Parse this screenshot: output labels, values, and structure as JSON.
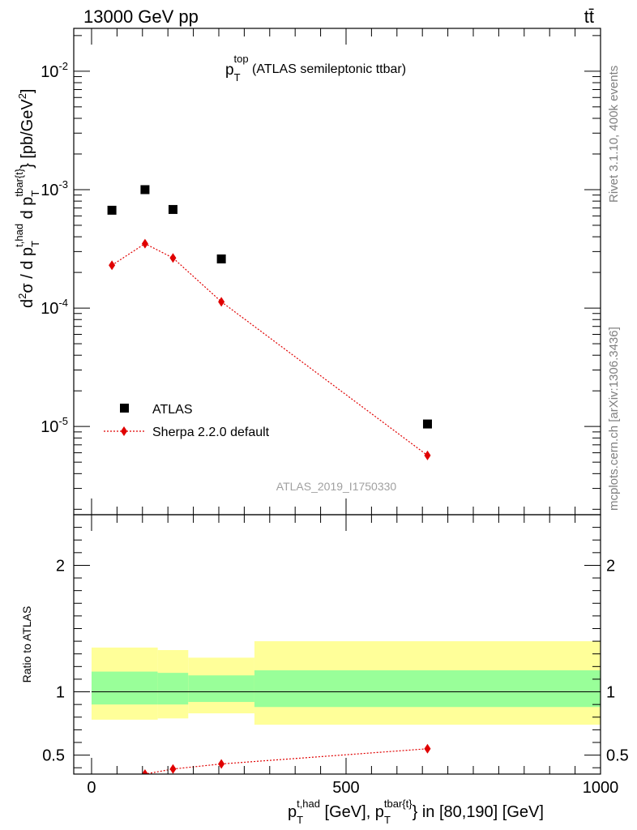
{
  "header": {
    "left": "13000 GeV pp",
    "right": "tt̄"
  },
  "side_labels": {
    "rivet": "Rivet 3.1.10,  400k events",
    "mcplots": "mcplots.cern.ch [arXiv:1306.3436]"
  },
  "analysis_id": "ATLAS_2019_I1750330",
  "chart_data": [
    {
      "type": "scatter",
      "panel": "main",
      "title": {
        "base": "p",
        "sup": "top",
        "sub": "T",
        "rest": " (ATLAS semileptonic ttbar)"
      },
      "ylabel": "d²σ / d p_T^{t,had} d p_T^{tbar{t}} [pb/GeV²]",
      "yscale": "log",
      "ylim": [
        1.8e-06,
        0.023
      ],
      "xlim": [
        -35,
        1000
      ],
      "yticks": [
        {
          "value": 0.01,
          "base": "10",
          "exp": "-2"
        },
        {
          "value": 0.001,
          "base": "10",
          "exp": "-3"
        },
        {
          "value": 0.0001,
          "base": "10",
          "exp": "-4"
        },
        {
          "value": 1e-05,
          "base": "10",
          "exp": "-5"
        }
      ],
      "legend": {
        "placement": "bottom-left"
      },
      "series": [
        {
          "name": "ATLAS",
          "color": "#000000",
          "marker": "square",
          "x": [
            40,
            105,
            160,
            255,
            660
          ],
          "y": [
            0.00067,
            0.001,
            0.00068,
            0.00026,
            1.05e-05
          ]
        },
        {
          "name": "Sherpa 2.2.0 default",
          "color": "#e00000",
          "marker": "diamond",
          "line": "dotted",
          "x": [
            40,
            105,
            160,
            255,
            660
          ],
          "y": [
            0.00023,
            0.00035,
            0.000265,
            0.000113,
            5.7e-06
          ]
        }
      ]
    },
    {
      "type": "line",
      "panel": "ratio",
      "ylabel": "Ratio to ATLAS",
      "xlabel": "p_T^{t,had} [GeV], p_T^{tbar{t}} in [80,190] [GeV]",
      "xlim": [
        -35,
        1000
      ],
      "ylim": [
        0.35,
        2.4
      ],
      "xticks": [
        0,
        500,
        1000
      ],
      "yticks": [
        0.5,
        1,
        2
      ],
      "bands": [
        {
          "x0": 0,
          "x1": 130,
          "yellow": [
            0.78,
            1.35
          ],
          "green": [
            0.9,
            1.16
          ]
        },
        {
          "x0": 130,
          "x1": 190,
          "yellow": [
            0.79,
            1.33
          ],
          "green": [
            0.9,
            1.15
          ]
        },
        {
          "x0": 190,
          "x1": 320,
          "yellow": [
            0.83,
            1.27
          ],
          "green": [
            0.92,
            1.13
          ]
        },
        {
          "x0": 320,
          "x1": 1000,
          "yellow": [
            0.74,
            1.4
          ],
          "green": [
            0.88,
            1.17
          ]
        }
      ],
      "band_colors": {
        "yellow": "#ffff99",
        "green": "#99ff99"
      },
      "series": [
        {
          "name": "Sherpa 2.2.0 default",
          "color": "#e00000",
          "x": [
            40,
            105,
            160,
            255,
            660
          ],
          "y": [
            0.34,
            0.35,
            0.39,
            0.43,
            0.55
          ]
        }
      ]
    }
  ]
}
